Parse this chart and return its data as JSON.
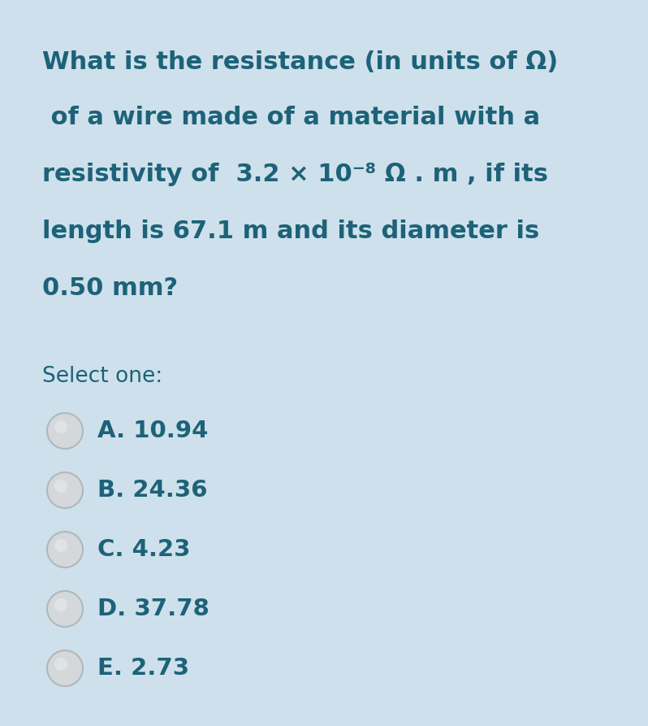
{
  "background_color": "#cde0eb",
  "text_color": "#1d6278",
  "question_lines": [
    "What is the resistance (in units of Ω)",
    " of a wire made of a material with a",
    "resistivity of  3.2 × 10⁻⁸ Ω . m , if its",
    "length is 67.1 m and its diameter is",
    "0.50 mm?"
  ],
  "select_one_text": "Select one:",
  "options": [
    {
      "letter": "A",
      "value": "10.94"
    },
    {
      "letter": "B",
      "value": "24.36"
    },
    {
      "letter": "C",
      "value": "4.23"
    },
    {
      "letter": "D",
      "value": "37.78"
    },
    {
      "letter": "E",
      "value": "2.73"
    }
  ],
  "question_fontsize": 22,
  "select_fontsize": 19,
  "option_fontsize": 21,
  "fig_width": 7.98,
  "fig_height": 8.93,
  "dpi": 100
}
